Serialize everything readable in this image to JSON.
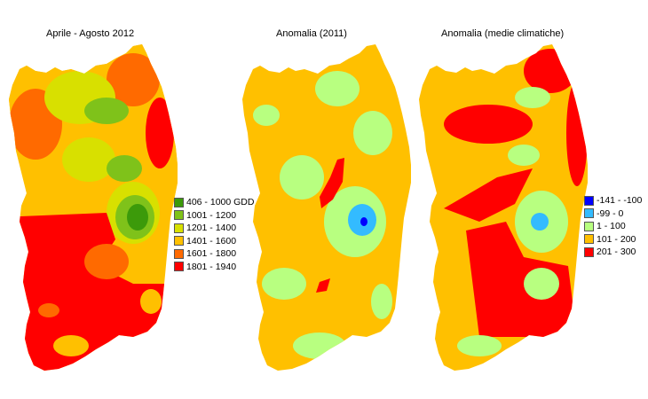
{
  "maps": [
    {
      "title": "Aprile - Agosto 2012",
      "legend": [
        {
          "label": "406 - 1000 GDD",
          "color": "#3c9a0a"
        },
        {
          "label": "1001 - 1200",
          "color": "#7fc21a"
        },
        {
          "label": "1201 - 1400",
          "color": "#d8e000"
        },
        {
          "label": "1401 - 1600",
          "color": "#ffc000"
        },
        {
          "label": "1601 - 1800",
          "color": "#ff6a00"
        },
        {
          "label": "1801 - 1940",
          "color": "#ff0000"
        }
      ]
    },
    {
      "title": "Anomalia (2011)",
      "legend": []
    },
    {
      "title": "Anomalia (medie climatiche)",
      "legend": [
        {
          "label": "-141 - -100",
          "color": "#0000ff"
        },
        {
          "label": "-99 - 0",
          "color": "#33bbff"
        },
        {
          "label": "1 - 100",
          "color": "#b8ff80"
        },
        {
          "label": "101 - 200",
          "color": "#ffc000"
        },
        {
          "label": "201 - 300",
          "color": "#ff0000"
        }
      ]
    }
  ]
}
